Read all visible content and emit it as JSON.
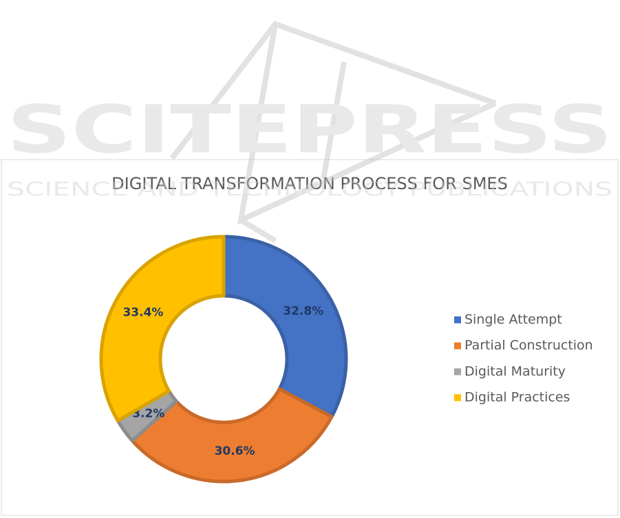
{
  "watermark": {
    "title": "SCITEPRESS",
    "subtitle": "SCIENCE AND TECHNOLOGY PUBLICATIONS"
  },
  "chart_data": {
    "type": "donut",
    "title": "DIGITAL TRANSFORMATION PROCESS FOR SMES",
    "categories": [
      "Single Attempt",
      "Partial Construction",
      "Digital Maturity",
      "Digital Practices"
    ],
    "values": [
      32.8,
      30.6,
      3.2,
      33.4
    ],
    "value_labels": [
      "32.8%",
      "30.6%",
      "3.2%",
      "33.4%"
    ],
    "colors": [
      "#4472c4",
      "#ed7d31",
      "#a5a5a5",
      "#ffc000"
    ],
    "legend": "right"
  }
}
